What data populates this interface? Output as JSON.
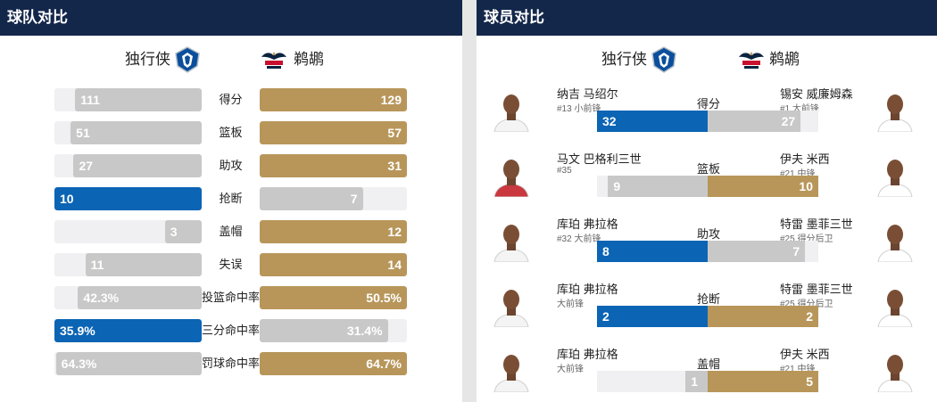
{
  "colors": {
    "header": "#13274a",
    "blue": "#0b64b4",
    "gold": "#b8965a",
    "gray": "#c8c8c8",
    "track": "#f0f0f2"
  },
  "team_compare": {
    "title": "球队对比",
    "left_team": "独行侠",
    "right_team": "鹈鹕",
    "left_logo_icon": "mavericks-logo-icon",
    "right_logo_icon": "pelicans-logo-icon",
    "stats": [
      {
        "label": "得分",
        "left": "111",
        "right": "129",
        "left_frac": 0.86,
        "right_frac": 1.0,
        "left_color": "gray",
        "right_color": "gold"
      },
      {
        "label": "篮板",
        "left": "51",
        "right": "57",
        "left_frac": 0.89,
        "right_frac": 1.0,
        "left_color": "gray",
        "right_color": "gold"
      },
      {
        "label": "助攻",
        "left": "27",
        "right": "31",
        "left_frac": 0.87,
        "right_frac": 1.0,
        "left_color": "gray",
        "right_color": "gold"
      },
      {
        "label": "抢断",
        "left": "10",
        "right": "7",
        "left_frac": 1.0,
        "right_frac": 0.7,
        "left_color": "blue",
        "right_color": "gray"
      },
      {
        "label": "盖帽",
        "left": "3",
        "right": "12",
        "left_frac": 0.25,
        "right_frac": 1.0,
        "left_color": "gray",
        "right_color": "gold"
      },
      {
        "label": "失误",
        "left": "11",
        "right": "14",
        "left_frac": 0.79,
        "right_frac": 1.0,
        "left_color": "gray",
        "right_color": "gold"
      },
      {
        "label": "投篮命中率",
        "left": "42.3%",
        "right": "50.5%",
        "left_frac": 0.84,
        "right_frac": 1.0,
        "left_color": "gray",
        "right_color": "gold"
      },
      {
        "label": "三分命中率",
        "left": "35.9%",
        "right": "31.4%",
        "left_frac": 1.0,
        "right_frac": 0.87,
        "left_color": "blue",
        "right_color": "gray"
      },
      {
        "label": "罚球命中率",
        "left": "64.3%",
        "right": "64.7%",
        "left_frac": 0.99,
        "right_frac": 1.0,
        "left_color": "gray",
        "right_color": "gold"
      }
    ]
  },
  "player_compare": {
    "title": "球员对比",
    "left_team": "独行侠",
    "right_team": "鹈鹕",
    "rows": [
      {
        "label": "得分",
        "left_name": "纳吉 马绍尔",
        "left_sub": "#13 小前锋",
        "right_name": "锡安 威廉姆森",
        "right_sub": "#1 大前锋",
        "left": "32",
        "right": "27",
        "left_frac": 1.0,
        "right_frac": 0.84,
        "left_color": "blue",
        "right_color": "gray",
        "left_jersey": "#f4f4f4",
        "right_jersey": "#ffffff"
      },
      {
        "label": "篮板",
        "left_name": "马文 巴格利三世",
        "left_sub": "#35",
        "right_name": "伊夫 米西",
        "right_sub": "#21 中锋",
        "left": "9",
        "right": "10",
        "left_frac": 0.9,
        "right_frac": 1.0,
        "left_color": "gray",
        "right_color": "gold",
        "left_jersey": "#c8383e",
        "right_jersey": "#ffffff"
      },
      {
        "label": "助攻",
        "left_name": "库珀 弗拉格",
        "left_sub": "#32 大前锋",
        "right_name": "特雷 墨菲三世",
        "right_sub": "#25 得分后卫",
        "left": "8",
        "right": "7",
        "left_frac": 1.0,
        "right_frac": 0.88,
        "left_color": "blue",
        "right_color": "gray",
        "left_jersey": "#f4f4f4",
        "right_jersey": "#ffffff"
      },
      {
        "label": "抢断",
        "left_name": "库珀 弗拉格",
        "left_sub": "大前锋",
        "right_name": "特雷 墨菲三世",
        "right_sub": "#25 得分后卫",
        "left": "2",
        "right": "2",
        "left_frac": 1.0,
        "right_frac": 1.0,
        "left_color": "blue",
        "right_color": "gold",
        "left_jersey": "#f4f4f4",
        "right_jersey": "#ffffff"
      },
      {
        "label": "盖帽",
        "left_name": "库珀 弗拉格",
        "left_sub": "大前锋",
        "right_name": "伊夫 米西",
        "right_sub": "#21 中锋",
        "left": "1",
        "right": "5",
        "left_frac": 0.2,
        "right_frac": 1.0,
        "left_color": "gray",
        "right_color": "gold",
        "left_jersey": "#f4f4f4",
        "right_jersey": "#ffffff"
      }
    ]
  }
}
